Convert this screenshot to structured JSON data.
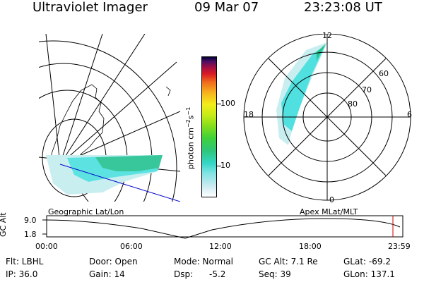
{
  "header": {
    "instrument": "Ultraviolet Imager",
    "date": "09 Mar 07",
    "time": "23:23:08 UT"
  },
  "colorbar": {
    "label_main": "photon cm",
    "label_exp1": "−2",
    "label_mid": "s",
    "label_exp2": "−1",
    "ticks": [
      "100",
      "10"
    ]
  },
  "polar": {
    "lat_labels": [
      "60",
      "70",
      "80"
    ],
    "mlt_labels": [
      "12",
      "18",
      "6",
      "0"
    ]
  },
  "panels": {
    "left_caption": "Geographic Lat/Lon",
    "right_caption": "Apex MLat/MLT"
  },
  "timeline": {
    "axis_label": "GC Alt",
    "y_ticks": [
      "9.0",
      "1.8"
    ],
    "x_ticks": [
      "00:00",
      "06:00",
      "12:00",
      "18:00",
      "23:59"
    ]
  },
  "status": {
    "flt": "Flt: LBHL",
    "ip": "IP: 36.0",
    "door": "Door: Open",
    "gain": "Gain: 14",
    "mode": "Mode: Normal",
    "dsp_label": "Dsp:",
    "dsp_value": "-5.2",
    "gcalt": "GC Alt: 7.1 Re",
    "seq": "Seq: 39",
    "glat": "GLat: -69.2",
    "glon": "GLon: 137.1"
  },
  "colors": {
    "aurora_light": "#c8eef0",
    "aurora_mid": "#4fe0df",
    "aurora_green": "#2ec08a",
    "marker_red": "#d00000",
    "track_blue": "#0000cc"
  }
}
